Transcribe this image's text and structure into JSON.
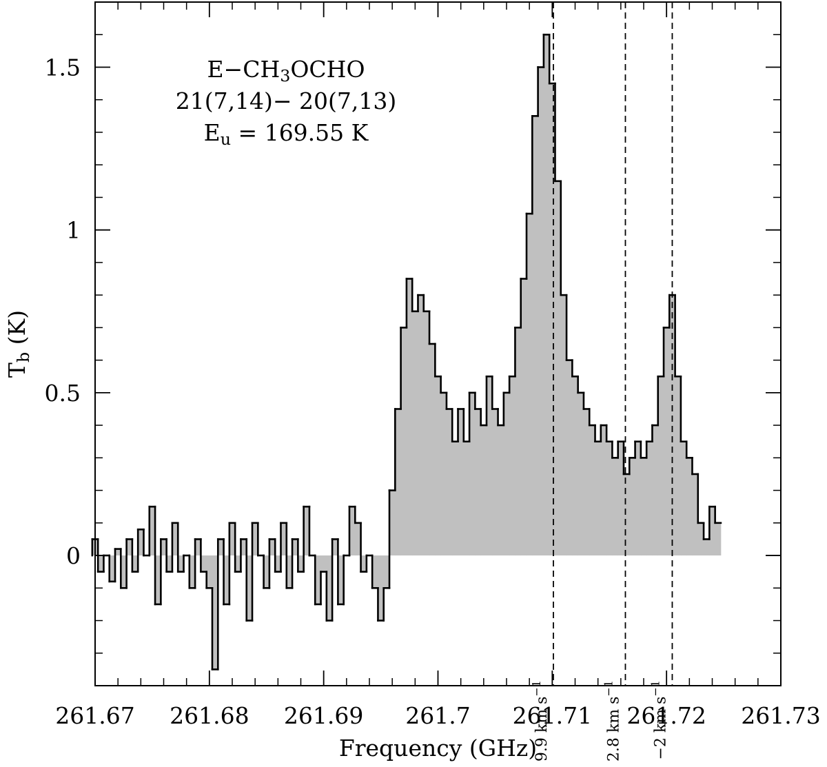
{
  "chart_data": {
    "type": "step",
    "x_label": "Frequency (GHz)",
    "y_label": [
      {
        "text": "T"
      },
      {
        "text": "b",
        "sub": true
      },
      {
        "text": " (K)"
      }
    ],
    "label_lines": [
      [
        {
          "text": "E−CH"
        },
        {
          "text": "3",
          "sub": true
        },
        {
          "text": "OCHO"
        }
      ],
      [
        {
          "text": "21(7,14)− 20(7,13)"
        }
      ],
      [
        {
          "text": "E"
        },
        {
          "text": "u",
          "sub": true
        },
        {
          "text": " = 169.55 K"
        }
      ]
    ],
    "x": [
      261.67,
      261.6705,
      261.671,
      261.6715,
      261.672,
      261.6725,
      261.673,
      261.6735,
      261.674,
      261.6745,
      261.675,
      261.6755,
      261.676,
      261.6765,
      261.677,
      261.6775,
      261.678,
      261.6785,
      261.679,
      261.6795,
      261.68,
      261.6805,
      261.681,
      261.6815,
      261.682,
      261.6825,
      261.683,
      261.6835,
      261.684,
      261.6845,
      261.685,
      261.6855,
      261.686,
      261.6865,
      261.687,
      261.6875,
      261.688,
      261.6885,
      261.689,
      261.6895,
      261.69,
      261.6905,
      261.691,
      261.6915,
      261.692,
      261.6925,
      261.693,
      261.6935,
      261.694,
      261.6945,
      261.695,
      261.6955,
      261.696,
      261.6965,
      261.697,
      261.6975,
      261.698,
      261.6985,
      261.699,
      261.6995,
      261.7,
      261.7005,
      261.701,
      261.7015,
      261.702,
      261.7025,
      261.703,
      261.7035,
      261.704,
      261.7045,
      261.705,
      261.7055,
      261.706,
      261.7065,
      261.707,
      261.7075,
      261.708,
      261.7085,
      261.709,
      261.7095,
      261.71,
      261.7105,
      261.711,
      261.7115,
      261.712,
      261.7125,
      261.713,
      261.7135,
      261.714,
      261.7145,
      261.715,
      261.7155,
      261.716,
      261.7165,
      261.717,
      261.7175,
      261.718,
      261.7185,
      261.719,
      261.7195,
      261.72,
      261.7205,
      261.721,
      261.7215,
      261.722,
      261.7225,
      261.723,
      261.7235,
      261.724,
      261.7245
    ],
    "values": [
      0.05,
      -0.05,
      0.0,
      -0.08,
      0.02,
      -0.1,
      0.05,
      -0.05,
      0.08,
      0.0,
      0.15,
      -0.15,
      0.05,
      -0.05,
      0.1,
      -0.05,
      0.0,
      -0.1,
      0.05,
      -0.05,
      -0.1,
      -0.35,
      0.05,
      -0.15,
      0.1,
      -0.05,
      0.05,
      -0.2,
      0.1,
      0.0,
      -0.1,
      0.05,
      -0.05,
      0.1,
      -0.1,
      0.05,
      -0.05,
      0.15,
      0.0,
      -0.15,
      -0.05,
      -0.2,
      0.05,
      -0.15,
      0.0,
      0.15,
      0.1,
      -0.05,
      0.0,
      -0.1,
      -0.2,
      -0.1,
      0.2,
      0.45,
      0.7,
      0.85,
      0.75,
      0.8,
      0.75,
      0.65,
      0.55,
      0.5,
      0.45,
      0.35,
      0.45,
      0.35,
      0.5,
      0.45,
      0.4,
      0.55,
      0.45,
      0.4,
      0.5,
      0.55,
      0.7,
      0.85,
      1.05,
      1.35,
      1.5,
      1.6,
      1.45,
      1.15,
      0.8,
      0.6,
      0.55,
      0.5,
      0.45,
      0.4,
      0.35,
      0.4,
      0.35,
      0.3,
      0.35,
      0.25,
      0.3,
      0.35,
      0.3,
      0.35,
      0.4,
      0.55,
      0.7,
      0.8,
      0.55,
      0.35,
      0.3,
      0.25,
      0.1,
      0.05,
      0.15,
      0.1
    ],
    "color": "#000000",
    "fill_color": "#c0c0c0",
    "xlim": [
      261.67,
      261.73
    ],
    "ylim": [
      -0.4,
      1.7
    ],
    "xticks": [
      261.67,
      261.68,
      261.69,
      261.7,
      261.71,
      261.72,
      261.73
    ],
    "xminorticks": [
      261.672,
      261.674,
      261.676,
      261.678,
      261.682,
      261.684,
      261.686,
      261.688,
      261.692,
      261.694,
      261.696,
      261.698,
      261.702,
      261.704,
      261.706,
      261.708,
      261.712,
      261.714,
      261.716,
      261.718,
      261.722,
      261.724,
      261.726,
      261.728
    ],
    "yticks": [
      0,
      0.5,
      1,
      1.5
    ],
    "yminorticks": [
      -0.3,
      -0.2,
      -0.1,
      0.1,
      0.2,
      0.3,
      0.4,
      0.6,
      0.7,
      0.8,
      0.9,
      1.1,
      1.2,
      1.3,
      1.4,
      1.6
    ],
    "markers": [
      {
        "x": 261.7101,
        "text": "9.9 km s",
        "superscript": "−1"
      },
      {
        "x": 261.7164,
        "text": "2.8 km s",
        "superscript": "−1"
      },
      {
        "x": 261.7205,
        "text": "−2 km s",
        "superscript": "−1"
      }
    ]
  }
}
